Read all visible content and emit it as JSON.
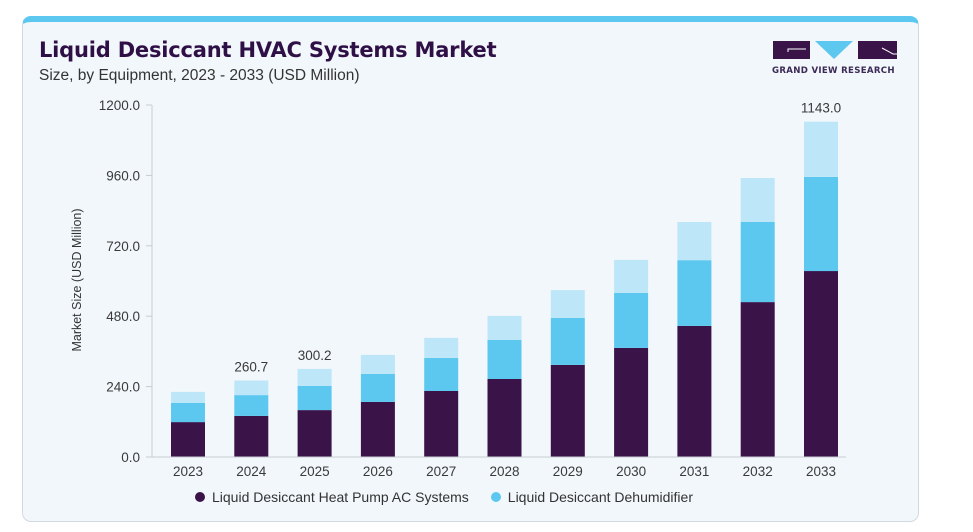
{
  "header": {
    "title": "Liquid Desiccant HVAC Systems Market",
    "subtitle": "Size, by Equipment, 2023 - 2033 (USD Million)"
  },
  "logo": {
    "text": "GRAND VIEW RESEARCH",
    "colors": {
      "dark": "#3a1349",
      "accent": "#5cc8f0"
    }
  },
  "chart_data": {
    "type": "bar",
    "stacked": true,
    "title": "Liquid Desiccant HVAC Systems Market",
    "subtitle": "Size, by Equipment, 2023 - 2033 (USD Million)",
    "xlabel": "",
    "ylabel": "Market Size (USD Million)",
    "ylim": [
      0,
      1200
    ],
    "yticks": [
      "0.0",
      "240.0",
      "480.0",
      "720.0",
      "960.0",
      "1200.0"
    ],
    "ytick_values": [
      0,
      240,
      480,
      720,
      960,
      1200
    ],
    "grid": false,
    "categories": [
      "2023",
      "2024",
      "2025",
      "2026",
      "2027",
      "2028",
      "2029",
      "2030",
      "2031",
      "2032",
      "2033"
    ],
    "series": [
      {
        "name": "Liquid Desiccant Heat Pump AC Systems",
        "color": "#3a1349",
        "values": [
          119,
          140,
          160,
          188,
          225,
          266,
          314,
          372,
          447,
          528,
          634
        ]
      },
      {
        "name": "Liquid Desiccant Dehumidifier",
        "color": "#5cc8f0",
        "values": [
          65,
          71,
          82,
          95,
          113,
          133,
          160,
          187,
          224,
          273,
          321
        ]
      },
      {
        "name": "",
        "color": "#bde7f8",
        "values": [
          38,
          49.7,
          58.2,
          65,
          68,
          82,
          95,
          113,
          130,
          150,
          188
        ]
      }
    ],
    "totals_labels": [
      {
        "category": "2024",
        "text": "260.7"
      },
      {
        "category": "2025",
        "text": "300.2"
      },
      {
        "category": "2033",
        "text": "1143.0"
      }
    ],
    "legend": {
      "position": "bottom",
      "entries": [
        "Liquid Desiccant Heat Pump AC Systems",
        "Liquid Desiccant Dehumidifier"
      ]
    }
  }
}
